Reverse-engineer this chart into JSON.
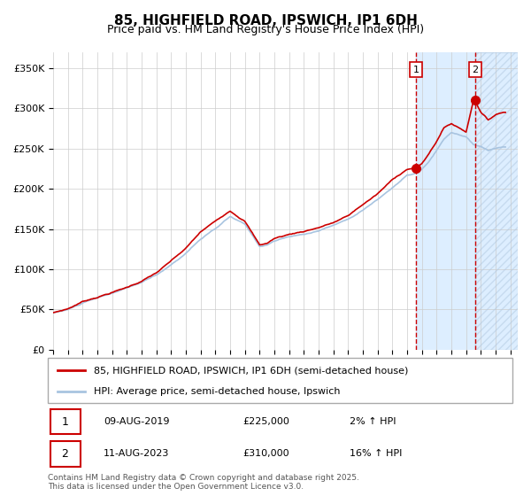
{
  "title": "85, HIGHFIELD ROAD, IPSWICH, IP1 6DH",
  "subtitle": "Price paid vs. HM Land Registry's House Price Index (HPI)",
  "ylim": [
    0,
    370000
  ],
  "xlim_start": 1995.0,
  "xlim_end": 2026.5,
  "yticks": [
    0,
    50000,
    100000,
    150000,
    200000,
    250000,
    300000,
    350000
  ],
  "ytick_labels": [
    "£0",
    "£50K",
    "£100K",
    "£150K",
    "£200K",
    "£250K",
    "£300K",
    "£350K"
  ],
  "sale1_date": 2019.6,
  "sale1_price": 225000,
  "sale1_text": "09-AUG-2019",
  "sale1_amount": "£225,000",
  "sale1_hpi": "2% ↑ HPI",
  "sale2_date": 2023.6,
  "sale2_price": 310000,
  "sale2_text": "11-AUG-2023",
  "sale2_amount": "£310,000",
  "sale2_hpi": "16% ↑ HPI",
  "hpi_line_color": "#a8c4e0",
  "price_line_color": "#cc0000",
  "shaded_region_color": "#ddeeff",
  "vline_color": "#cc0000",
  "title_fontsize": 11,
  "subtitle_fontsize": 9,
  "tick_fontsize": 8,
  "legend_fontsize": 8,
  "annotation_fontsize": 8,
  "footer_fontsize": 6.5
}
